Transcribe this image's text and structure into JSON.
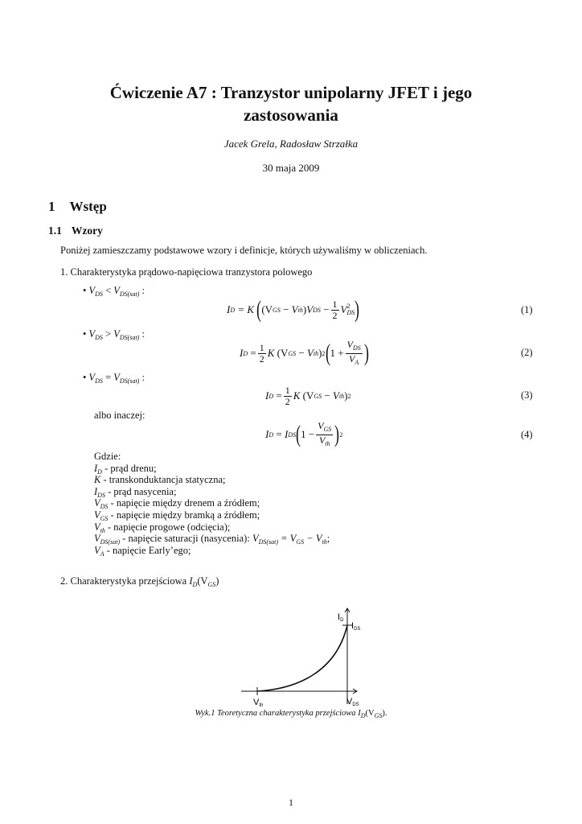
{
  "title": {
    "line1": "Ćwiczenie A7 : Tranzystor unipolarny JFET i jego",
    "line2": "zastosowania"
  },
  "authors": "Jacek Grela, Radosław Strzałka",
  "date": "30 maja 2009",
  "section": {
    "num": "1",
    "title": "Wstęp"
  },
  "subsection": {
    "num": "1.1",
    "title": "Wzory"
  },
  "intro": "Poniżej zamieszczamy podstawowe wzory i definicje, których używaliśmy w obliczeniach.",
  "item1": "1. Charakterystyka prądowo-napięciowa tranzystora polowego",
  "bullets": [
    {
      "lhs": "V",
      "lsub": "DS",
      "op": "<",
      "rhs": "V",
      "rsub": "DS(sat)",
      "colon": ":"
    },
    {
      "lhs": "V",
      "lsub": "DS",
      "op": ">",
      "rhs": "V",
      "rsub": "DS(sat)",
      "colon": ":"
    },
    {
      "lhs": "V",
      "lsub": "DS",
      "op": "=",
      "rhs": "V",
      "rsub": "DS(sat)",
      "colon": ":"
    }
  ],
  "equations": {
    "n1": "(1)",
    "n2": "(2)",
    "n3": "(3)",
    "n4": "(4)",
    "I": "I",
    "D": "D",
    "eqK": "= K",
    "eq": "=",
    "K": "K",
    "one": "1",
    "two": "2",
    "V": "V",
    "GS": "GS",
    "th": "th",
    "DS": "DS",
    "A": "A",
    "sq": "2",
    "open": "(",
    "close": ")",
    "lp": "(V",
    "minus": "−",
    "rp": ")",
    "plus": "1 +",
    "oneminus": "1 −",
    "IDS": "I"
  },
  "albo": "albo inaczej:",
  "gdzie": {
    "head": "Gdzie:",
    "items": [
      {
        "sym": "I",
        "sub": "D",
        "text": " - prąd drenu;"
      },
      {
        "sym": "K",
        "sub": "",
        "text": " - transkonduktancja statyczna;"
      },
      {
        "sym": "I",
        "sub": "DS",
        "text": " - prąd nasycenia;"
      },
      {
        "sym": "V",
        "sub": "DS",
        "text": " - napięcie między drenem a źródłem;"
      },
      {
        "sym": "V",
        "sub": "GS",
        "text": " - napięcie między bramką a źródłem;"
      },
      {
        "sym": "V",
        "sub": "th",
        "text": " - napięcie progowe (odcięcia);"
      },
      {
        "sym": "V",
        "sub": "DS(sat)",
        "text": " - napięcie saturacji (nasycenia): "
      },
      {
        "sym": "V",
        "sub": "A",
        "text": " - napięcie Early’ego;"
      }
    ],
    "sat_tail": {
      "a": "V",
      "asub": "DS(sat)",
      "mid": " = V",
      "bsub": "GS",
      "m2": " − V",
      "csub": "th",
      "end": ";"
    }
  },
  "item2": {
    "text": "2. Charakterystyka przejściowa ",
    "sym": "I",
    "sub": "D",
    "arg": "(V",
    "argsub": "GS",
    "end": ")"
  },
  "figure": {
    "ylabel": "I",
    "ylabel_sub": "D",
    "ids": "I",
    "ids_sub": "DS",
    "vth": "V",
    "vth_sub": "th",
    "xlabel": "V",
    "xlabel_sub": "DS"
  },
  "caption": {
    "text": "Wyk.1 Teoretyczna charakterystyka przejściowa ",
    "sym": "I",
    "sub": "D",
    "arg": "(V",
    "argsub": "GS",
    "end": ")."
  },
  "page_number": "1"
}
